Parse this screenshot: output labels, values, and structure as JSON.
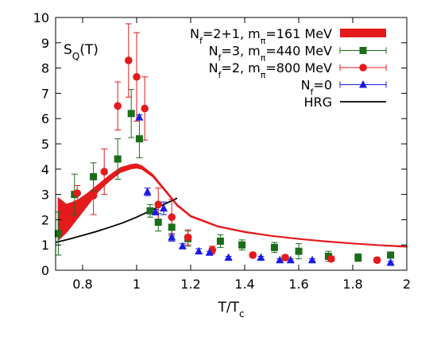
{
  "chart_data": {
    "type": "scatter",
    "xlabel": {
      "main": "T/T",
      "sub": "c"
    },
    "annotation": {
      "main": "S",
      "sub": "Q",
      "tail": "(T)"
    },
    "xlim": [
      0.7,
      2.0
    ],
    "ylim": [
      0,
      10
    ],
    "xticks": [
      0.8,
      1,
      1.2,
      1.4,
      1.6,
      1.8,
      2
    ],
    "yticks": [
      0,
      1,
      2,
      3,
      4,
      5,
      6,
      7,
      8,
      9,
      10
    ],
    "grid": false,
    "legend": "top-right",
    "series": [
      {
        "name_parts": [
          [
            "N",
            ""
          ],
          [
            "f",
            "sub"
          ],
          [
            "=2+1, m",
            ""
          ],
          [
            "π",
            "sub"
          ],
          [
            "=161 MeV",
            ""
          ]
        ],
        "type": "band",
        "color": "#e41a1c",
        "x": [
          0.71,
          0.74,
          0.78,
          0.82,
          0.86,
          0.9,
          0.94,
          0.98,
          1.0,
          1.02,
          1.06,
          1.1,
          1.15,
          1.2,
          1.3,
          1.4,
          1.5,
          1.6,
          1.7,
          1.8,
          1.9,
          2.0
        ],
        "lower": [
          1.2,
          1.5,
          2.05,
          2.6,
          3.15,
          3.55,
          3.88,
          4.02,
          4.05,
          4.0,
          3.7,
          3.2,
          2.55,
          2.12,
          1.72,
          1.5,
          1.35,
          1.23,
          1.13,
          1.05,
          0.98,
          0.92
        ],
        "upper": [
          2.85,
          2.6,
          2.75,
          3.05,
          3.4,
          3.75,
          4.05,
          4.18,
          4.2,
          4.12,
          3.78,
          3.26,
          2.6,
          2.16,
          1.75,
          1.53,
          1.37,
          1.25,
          1.15,
          1.07,
          1.0,
          0.95
        ]
      },
      {
        "name_parts": [
          [
            "N",
            ""
          ],
          [
            "f",
            "sub"
          ],
          [
            "=3, m",
            ""
          ],
          [
            "π",
            "sub"
          ],
          [
            "=440 MeV",
            ""
          ]
        ],
        "type": "points",
        "marker": "square",
        "color": "#1a6e1a",
        "x": [
          0.71,
          0.77,
          0.84,
          0.93,
          0.98,
          1.01,
          1.05,
          1.08,
          1.13,
          1.19,
          1.31,
          1.39,
          1.51,
          1.6,
          1.71,
          1.82,
          1.94
        ],
        "y": [
          1.45,
          3.0,
          3.7,
          4.4,
          6.2,
          5.2,
          2.35,
          1.9,
          1.7,
          1.25,
          1.15,
          1.0,
          0.9,
          0.75,
          0.55,
          0.5,
          0.6
        ],
        "err": [
          0.85,
          0.8,
          0.55,
          0.8,
          0.95,
          0.75,
          0.25,
          0.35,
          0.35,
          0.3,
          0.25,
          0.2,
          0.2,
          0.3,
          0.2,
          0.15,
          0.1
        ]
      },
      {
        "name_parts": [
          [
            "N",
            ""
          ],
          [
            "f",
            "sub"
          ],
          [
            "=2, m",
            ""
          ],
          [
            "π",
            "sub"
          ],
          [
            "=800 MeV",
            ""
          ]
        ],
        "type": "points",
        "marker": "circle",
        "color": "#e41a1c",
        "x": [
          0.78,
          0.84,
          0.88,
          0.93,
          0.97,
          1.0,
          1.03,
          1.08,
          1.13,
          1.19,
          1.28,
          1.43,
          1.55,
          1.72,
          1.89
        ],
        "y": [
          3.05,
          2.95,
          3.9,
          6.5,
          8.3,
          7.65,
          6.4,
          2.6,
          2.1,
          1.3,
          0.8,
          0.6,
          0.5,
          0.45,
          0.4
        ],
        "err": [
          0.3,
          0.75,
          0.9,
          0.95,
          1.45,
          1.75,
          1.25,
          0.65,
          0.7,
          0.3,
          0.15,
          0.1,
          0.1,
          0.1,
          0.1
        ]
      },
      {
        "name_parts": [
          [
            "N",
            ""
          ],
          [
            "f",
            "sub"
          ],
          [
            "=0",
            ""
          ]
        ],
        "type": "points",
        "marker": "triangle",
        "color": "#1a1ae6",
        "x": [
          1.01,
          1.04,
          1.07,
          1.1,
          1.13,
          1.17,
          1.23,
          1.27,
          1.34,
          1.46,
          1.53,
          1.57,
          1.65,
          1.94
        ],
        "y": [
          6.05,
          3.1,
          2.3,
          2.45,
          1.3,
          0.95,
          0.75,
          0.7,
          0.5,
          0.5,
          0.4,
          0.4,
          0.4,
          0.3
        ],
        "err": [
          0.1,
          0.15,
          0.1,
          0.25,
          0.15,
          0.1,
          0.1,
          0.05,
          0.05,
          0.05,
          0.05,
          0.05,
          0.05,
          0.05
        ]
      },
      {
        "name_parts": [
          [
            "HRG",
            ""
          ]
        ],
        "type": "line",
        "color": "#000000",
        "x": [
          0.7,
          0.75,
          0.8,
          0.85,
          0.9,
          0.95,
          1.0,
          1.05,
          1.1,
          1.15
        ],
        "y": [
          1.1,
          1.23,
          1.38,
          1.53,
          1.7,
          1.88,
          2.1,
          2.35,
          2.6,
          2.85
        ]
      }
    ]
  }
}
